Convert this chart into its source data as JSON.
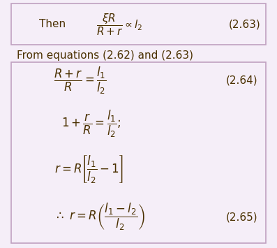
{
  "bg_color": "#f5eef8",
  "box1_color": "#f5eef8",
  "box2_color": "#f5eef8",
  "border_color": "#c0a0c0",
  "text_color": "#4a3000",
  "figsize": [
    3.97,
    3.55
  ],
  "dpi": 100,
  "line1_text": "Then",
  "line1_eq": "$\\dfrac{\\xi R}{R+r} \\propto l_2$",
  "line1_num": "(2.63)",
  "middle_text": "From equations (2.62) and (2.63)",
  "eq1": "$\\dfrac{R+r}{R} = \\dfrac{l_1}{l_2}$",
  "eq1_num": "(2.64)",
  "eq2": "$1 + \\dfrac{r}{R} = \\dfrac{l_1}{l_2};$",
  "eq3": "$r = R\\left[\\dfrac{l_1}{l_2} - 1\\right]$",
  "eq4": "$\\therefore\\ r = R\\left(\\dfrac{l_1 - l_2}{l_2}\\right)$",
  "eq4_num": "(2.65)"
}
